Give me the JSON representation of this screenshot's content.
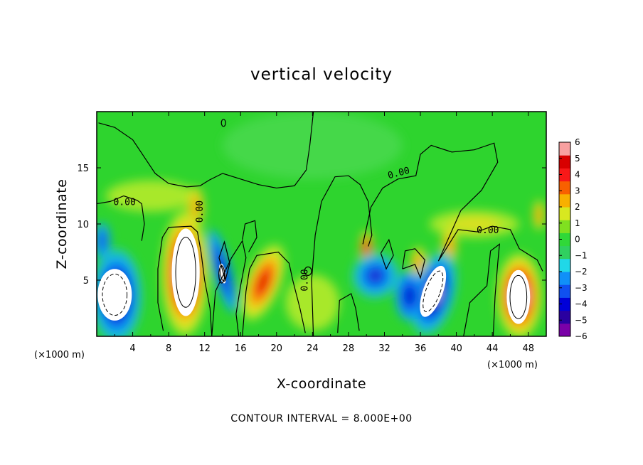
{
  "chart_data": {
    "type": "heatmap",
    "title": "vertical velocity",
    "xlabel": "X-coordinate",
    "ylabel": "Z-coordinate",
    "x_unit": "(×1000 m)",
    "x_unit_right": "(×1000 m)",
    "xlim": [
      0,
      50
    ],
    "ylim": [
      0,
      20
    ],
    "x_ticks": [
      "4",
      "8",
      "12",
      "16",
      "20",
      "24",
      "28",
      "32",
      "36",
      "40",
      "44",
      "48"
    ],
    "y_ticks": [
      "5",
      "10",
      "15"
    ],
    "colorbar": {
      "ticks": [
        "6",
        "5",
        "4",
        "3",
        "2",
        "1",
        "0",
        "−1",
        "−2",
        "−3",
        "−4",
        "−5",
        "−6"
      ],
      "range": [
        -6,
        6
      ],
      "colors": [
        "#7a00a8",
        "#2a00a0",
        "#0000d8",
        "#1050f0",
        "#1090f8",
        "#20d8e8",
        "#30d060",
        "#30d838",
        "#80e020",
        "#d8e820",
        "#f8b000",
        "#f86000",
        "#f81818",
        "#d80000",
        "#f8a0a0"
      ]
    },
    "contour_labels": [
      "0.00",
      "0.00",
      "0.00",
      "0.00",
      "0.00"
    ],
    "contour_interval_text": "CONTOUR INTERVAL = 8.000E+00",
    "features": [
      {
        "kind": "updraft",
        "x": 9.8,
        "z": 6.5,
        "value": 6
      },
      {
        "kind": "updraft",
        "x": 47.0,
        "z": 4.0,
        "value": 6
      },
      {
        "kind": "updraft",
        "x": 18.5,
        "z": 5.0,
        "value": 4.5
      },
      {
        "kind": "downdraft",
        "x": 2.0,
        "z": 4.0,
        "value": -6
      },
      {
        "kind": "downdraft",
        "x": 37.5,
        "z": 4.0,
        "value": -6
      },
      {
        "kind": "downdraft",
        "x": 14.0,
        "z": 6.5,
        "value": -5
      },
      {
        "kind": "downdraft",
        "x": 31.0,
        "z": 5.0,
        "value": -4
      }
    ]
  }
}
